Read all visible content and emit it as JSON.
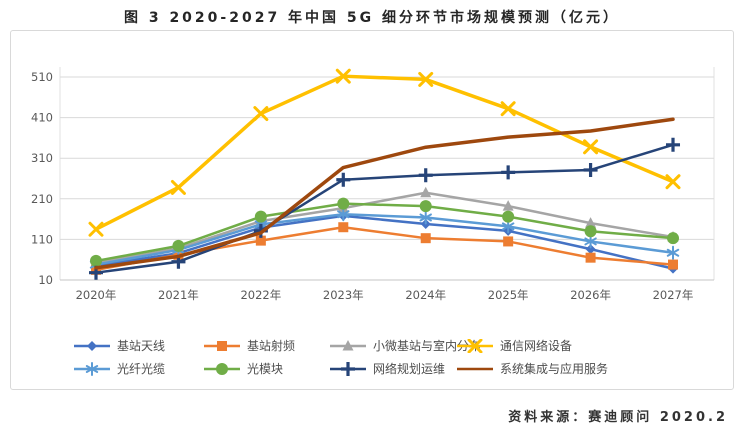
{
  "figure_title": "图 3 2020-2027 年中国 5G 细分环节市场规模预测（亿元）",
  "source_note": "资料来源：赛迪顾问  2020.2",
  "chart_data": {
    "type": "line",
    "title": "图 3 2020-2027 年中国 5G 细分环节市场规模预测（亿元）",
    "unit": "亿元",
    "xlabel": "",
    "ylabel": "",
    "categories": [
      "2020年",
      "2021年",
      "2022年",
      "2023年",
      "2024年",
      "2025年",
      "2026年",
      "2027年"
    ],
    "series": [
      {
        "name": "基站天线",
        "color": "#4472C4",
        "marker": "diamond",
        "line_width": 2.5,
        "values": [
          45,
          76,
          139,
          168,
          148,
          131,
          86,
          38
        ]
      },
      {
        "name": "基站射频",
        "color": "#ED7D31",
        "marker": "square",
        "line_width": 2.5,
        "values": [
          35,
          72,
          107,
          140,
          113,
          105,
          65,
          48
        ]
      },
      {
        "name": "小微基站与室内分布",
        "color": "#A5A5A5",
        "marker": "triangle",
        "line_width": 2.5,
        "values": [
          52,
          88,
          155,
          187,
          225,
          192,
          150,
          116
        ]
      },
      {
        "name": "通信网络设备",
        "color": "#FFC000",
        "marker": "x",
        "line_width": 3.5,
        "values": [
          135,
          238,
          420,
          512,
          504,
          432,
          338,
          252
        ]
      },
      {
        "name": "光纤光缆",
        "color": "#5B9BD5",
        "marker": "asterisk",
        "line_width": 2.5,
        "values": [
          48,
          84,
          147,
          172,
          164,
          142,
          105,
          77
        ]
      },
      {
        "name": "光模块",
        "color": "#70AD47",
        "marker": "circle",
        "line_width": 2.5,
        "values": [
          57,
          94,
          166,
          198,
          192,
          166,
          130,
          113
        ]
      },
      {
        "name": "网络规划运维",
        "color": "#264478",
        "marker": "plus",
        "line_width": 2.5,
        "values": [
          28,
          55,
          131,
          257,
          268,
          275,
          281,
          343
        ]
      },
      {
        "name": "系统集成与应用服务",
        "color": "#9E480E",
        "marker": "none",
        "line_width": 3.5,
        "values": [
          40,
          68,
          126,
          287,
          337,
          362,
          377,
          406
        ]
      }
    ],
    "yticks": [
      10,
      110,
      210,
      310,
      410,
      510
    ],
    "ylim": [
      10,
      560
    ],
    "grid": "horizontal-only",
    "gridline_color": "#d9d9d9",
    "tick_label_color": "#595959",
    "legend_position": "bottom",
    "legend_rows": 2,
    "legend_columns": 4
  }
}
